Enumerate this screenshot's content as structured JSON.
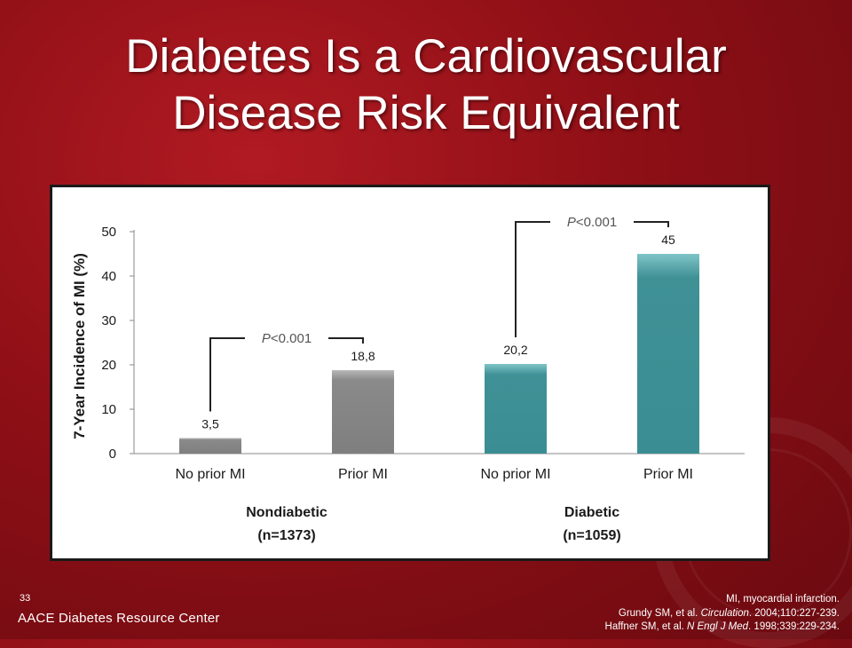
{
  "slide": {
    "title_line1": "Diabetes Is a Cardiovascular",
    "title_line2": "Disease Risk Equivalent",
    "slide_number": "33",
    "brand": "AACE Diabetes Resource Center",
    "footnote": "MI, myocardial infarction.",
    "ref1": {
      "prefix": "Grundy SM, et al. ",
      "journal": "Circulation",
      "suffix": ". 2004;110:227-239."
    },
    "ref2": {
      "prefix": "Haffner SM, et al. ",
      "journal": "N Engl J Med",
      "suffix": ". 1998;339:229-234."
    }
  },
  "colors": {
    "background": "#8e0f16",
    "nondiabetic_bar": "#808080",
    "diabetic_bar": "#3a8e93"
  },
  "chart_data": {
    "type": "bar",
    "categories": [
      "No prior MI",
      "Prior MI",
      "No prior MI",
      "Prior MI"
    ],
    "values": [
      3.5,
      18.8,
      20.2,
      45
    ],
    "data_labels": [
      "3,5",
      "18,8",
      "20,2",
      "45"
    ],
    "groups": [
      {
        "name": "Nondiabetic",
        "n": "(n=1373)",
        "categories": [
          0,
          1
        ]
      },
      {
        "name": "Diabetic",
        "n": "(n=1059)",
        "categories": [
          2,
          3
        ]
      }
    ],
    "ylabel": "7-Year Incidence of MI (%)",
    "ylim": [
      0,
      50
    ],
    "yticks": [
      0,
      10,
      20,
      30,
      40,
      50
    ],
    "grid": false,
    "annotations": [
      {
        "text_italic": "P",
        "text": "<0.001",
        "from": 0,
        "to": 1
      },
      {
        "text_italic": "P",
        "text": "<0.001",
        "from": 2,
        "to": 3
      }
    ]
  }
}
